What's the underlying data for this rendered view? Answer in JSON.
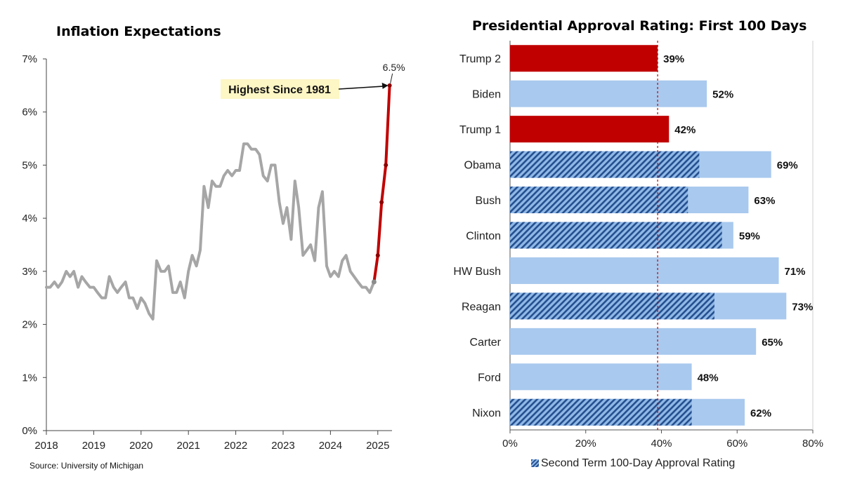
{
  "left": {
    "title": "Inflation Expectations",
    "source": "Source: University of Michigan",
    "annotation_label": "Highest Since 1981",
    "annotation_value": "6.5%"
  },
  "right": {
    "title": "Presidential Approval Rating: First 100 Days",
    "legend_label": "Second Term 100-Day Approval Rating"
  },
  "colors": {
    "history_line": "#a6a6a6",
    "recent_line": "#c00000",
    "highlight_bar": "#c00000",
    "bar": "#a9c9ee",
    "hatch_dark": "#244f8f",
    "annotation_bg": "#fdf6c5"
  },
  "chart_data": [
    {
      "type": "line",
      "title": "Inflation Expectations",
      "xlabel": "",
      "ylabel": "",
      "xlim": [
        2018,
        2025.3
      ],
      "ylim": [
        0,
        7
      ],
      "x_ticks": [
        "2018",
        "2019",
        "2020",
        "2021",
        "2022",
        "2023",
        "2024",
        "2025"
      ],
      "y_ticks": [
        "0%",
        "1%",
        "2%",
        "3%",
        "4%",
        "5%",
        "6%",
        "7%"
      ],
      "grid": false,
      "series": [
        {
          "style": "history",
          "x": [
            2018.0,
            2018.08,
            2018.17,
            2018.25,
            2018.33,
            2018.42,
            2018.5,
            2018.58,
            2018.67,
            2018.75,
            2018.83,
            2018.92,
            2019.0,
            2019.08,
            2019.17,
            2019.25,
            2019.33,
            2019.42,
            2019.5,
            2019.58,
            2019.67,
            2019.75,
            2019.83,
            2019.92,
            2020.0,
            2020.08,
            2020.17,
            2020.25,
            2020.33,
            2020.42,
            2020.5,
            2020.58,
            2020.67,
            2020.75,
            2020.83,
            2020.92,
            2021.0,
            2021.08,
            2021.17,
            2021.25,
            2021.33,
            2021.42,
            2021.5,
            2021.58,
            2021.67,
            2021.75,
            2021.83,
            2021.92,
            2022.0,
            2022.08,
            2022.17,
            2022.25,
            2022.33,
            2022.42,
            2022.5,
            2022.58,
            2022.67,
            2022.75,
            2022.83,
            2022.92,
            2023.0,
            2023.08,
            2023.17,
            2023.25,
            2023.33,
            2023.42,
            2023.5,
            2023.58,
            2023.67,
            2023.75,
            2023.83,
            2023.92,
            2024.0,
            2024.08,
            2024.17,
            2024.25,
            2024.33,
            2024.42,
            2024.5,
            2024.58,
            2024.67,
            2024.75,
            2024.83,
            2024.92
          ],
          "values": [
            2.7,
            2.7,
            2.8,
            2.7,
            2.8,
            3.0,
            2.9,
            3.0,
            2.7,
            2.9,
            2.8,
            2.7,
            2.7,
            2.6,
            2.5,
            2.5,
            2.9,
            2.7,
            2.6,
            2.7,
            2.8,
            2.5,
            2.5,
            2.3,
            2.5,
            2.4,
            2.2,
            2.1,
            3.2,
            3.0,
            3.0,
            3.1,
            2.6,
            2.6,
            2.8,
            2.5,
            3.0,
            3.3,
            3.1,
            3.4,
            4.6,
            4.2,
            4.7,
            4.6,
            4.6,
            4.8,
            4.9,
            4.8,
            4.9,
            4.9,
            5.4,
            5.4,
            5.3,
            5.3,
            5.2,
            4.8,
            4.7,
            5.0,
            5.0,
            4.3,
            3.9,
            4.2,
            3.6,
            4.7,
            4.2,
            3.3,
            3.4,
            3.5,
            3.2,
            4.2,
            4.5,
            3.1,
            2.9,
            3.0,
            2.9,
            3.2,
            3.3,
            3.0,
            2.9,
            2.8,
            2.7,
            2.7,
            2.6,
            2.8
          ]
        },
        {
          "style": "recent",
          "x": [
            2024.92,
            2025.0,
            2025.08,
            2025.17,
            2025.25
          ],
          "values": [
            2.8,
            3.3,
            4.3,
            5.0,
            6.5
          ]
        }
      ]
    },
    {
      "type": "bar",
      "orientation": "horizontal",
      "title": "Presidential Approval Rating: First 100 Days",
      "categories": [
        "Trump 2",
        "Biden",
        "Trump 1",
        "Obama",
        "Bush",
        "Clinton",
        "HW Bush",
        "Reagan",
        "Carter",
        "Ford",
        "Nixon"
      ],
      "values": [
        39,
        52,
        42,
        69,
        63,
        59,
        71,
        73,
        65,
        48,
        62
      ],
      "value_labels": [
        "39%",
        "52%",
        "42%",
        "69%",
        "63%",
        "59%",
        "71%",
        "73%",
        "65%",
        "48%",
        "62%"
      ],
      "highlighted": [
        "Trump 2",
        "Trump 1"
      ],
      "second_term_values": [
        null,
        null,
        null,
        50,
        47,
        56,
        null,
        54,
        null,
        null,
        48
      ],
      "xlim": [
        0,
        80
      ],
      "x_ticks": [
        "0%",
        "20%",
        "40%",
        "60%",
        "80%"
      ],
      "reference_line": 39,
      "legend": [
        "Second Term 100-Day Approval Rating"
      ],
      "legend_position": "bottom"
    }
  ]
}
